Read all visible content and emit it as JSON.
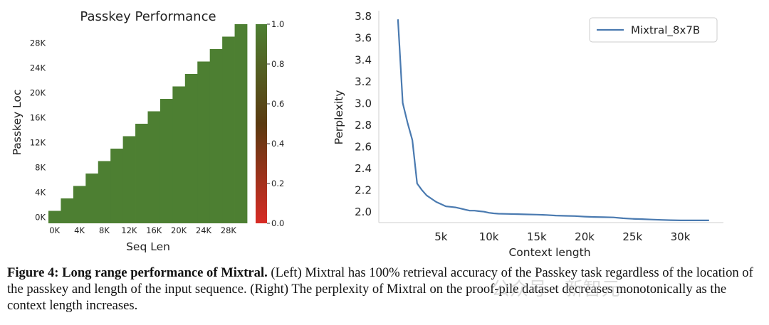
{
  "chart_data": [
    {
      "type": "heatmap",
      "title": "Passkey Performance",
      "xlabel": "Seq Len",
      "ylabel": "Passkey Loc",
      "x_ticks": [
        "0K",
        "4K",
        "8K",
        "12K",
        "16K",
        "20K",
        "24K",
        "28K"
      ],
      "y_ticks": [
        "0K",
        "4K",
        "8K",
        "12K",
        "16K",
        "20K",
        "24K",
        "28K"
      ],
      "n_bins": 16,
      "value": 1.0,
      "colorbar": {
        "ticks": [
          "0.0",
          "0.2",
          "0.4",
          "0.6",
          "0.8",
          "1.0"
        ],
        "range": [
          0,
          1
        ],
        "low_color": "#d72b25",
        "mid_color": "#5a3a10",
        "high_color": "#4d7f32"
      },
      "cell_color": "#4d7f32"
    },
    {
      "type": "line",
      "xlabel": "Context length",
      "ylabel": "Perplexity",
      "xlim": [
        -1500,
        34500
      ],
      "ylim": [
        1.9,
        3.85
      ],
      "x_ticks": [
        5000,
        10000,
        15000,
        20000,
        25000,
        30000
      ],
      "x_tick_labels": [
        "5k",
        "10k",
        "15k",
        "20k",
        "25k",
        "30k"
      ],
      "y_ticks": [
        2.0,
        2.2,
        2.4,
        2.6,
        2.8,
        3.0,
        3.2,
        3.4,
        3.6,
        3.8
      ],
      "y_tick_labels": [
        "2.0",
        "2.2",
        "2.4",
        "2.6",
        "2.8",
        "3.0",
        "3.2",
        "3.4",
        "3.6",
        "3.8"
      ],
      "legend_position": "top-right",
      "series": [
        {
          "name": "Mixtral_8x7B",
          "color": "#4a7ab0",
          "x": [
            500,
            1000,
            1500,
            2000,
            2500,
            3000,
            3500,
            4000,
            4500,
            5000,
            5500,
            6000,
            6500,
            7000,
            7500,
            8000,
            8500,
            9000,
            9500,
            10000,
            10500,
            11000,
            12000,
            13000,
            14000,
            15000,
            16000,
            17000,
            18000,
            19000,
            20000,
            21000,
            22000,
            23000,
            24000,
            25000,
            26000,
            27000,
            28000,
            29000,
            30000,
            31000,
            32000,
            33000
          ],
          "y": [
            3.77,
            3.0,
            2.82,
            2.66,
            2.26,
            2.2,
            2.15,
            2.12,
            2.09,
            2.07,
            2.05,
            2.045,
            2.04,
            2.03,
            2.02,
            2.01,
            2.01,
            2.005,
            2.0,
            1.99,
            1.985,
            1.982,
            1.98,
            1.978,
            1.975,
            1.973,
            1.97,
            1.965,
            1.962,
            1.96,
            1.955,
            1.952,
            1.95,
            1.948,
            1.94,
            1.935,
            1.932,
            1.928,
            1.925,
            1.922,
            1.92,
            1.92,
            1.92,
            1.92
          ]
        }
      ]
    }
  ],
  "caption": {
    "label": "Figure 4: Long range performance of Mixtral.",
    "text": " (Left) Mixtral has 100% retrieval accuracy of the Passkey task regardless of the location of the passkey and length of the input sequence. (Right) The perplexity of Mixtral on the proof-pile dataset decreases monotonically as the context length increases."
  },
  "watermark": "公众号 · 新智元"
}
